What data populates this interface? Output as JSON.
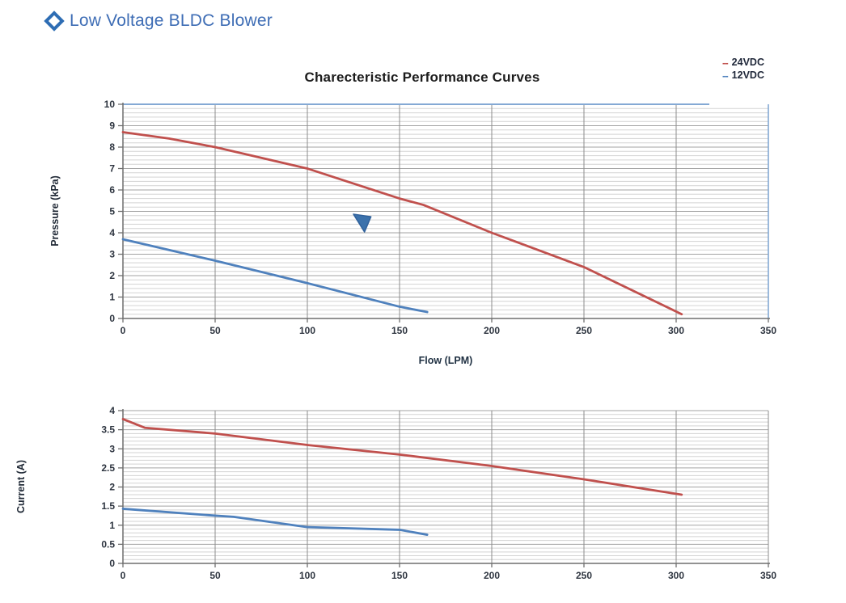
{
  "header": {
    "title": "Low Voltage BLDC Blower",
    "icon": "diamond",
    "accent_color": "#3E6DB5"
  },
  "legend": {
    "position": "top-right",
    "items": [
      {
        "marker": "--",
        "label": "24VDC",
        "color": "#C0504D"
      },
      {
        "marker": "--",
        "label": "12VDC",
        "color": "#4F81BD"
      }
    ]
  },
  "colors": {
    "series_red": "#C0504D",
    "series_blue": "#4F81BD",
    "grid_minor": "#D3D3D3",
    "grid_major": "#A3A3A3",
    "grid_vertical": "#8C8C8C",
    "axis": "#6F6F6F",
    "tick_text": "#2E3540",
    "frame_blue": "#84A9D4",
    "annotation_fill": "#3C72AC",
    "annotation_stroke": "#30619B"
  },
  "chart_data": [
    {
      "type": "line",
      "title": "Charecteristic Performance Curves",
      "xlabel": "Flow (LPM)",
      "ylabel": "Pressure (kPa)",
      "xlim": [
        0,
        350
      ],
      "ylim": [
        0,
        10
      ],
      "xticks": [
        0,
        50,
        100,
        150,
        200,
        250,
        300,
        350
      ],
      "yticks": [
        0,
        1,
        2,
        3,
        4,
        5,
        6,
        7,
        8,
        9,
        10
      ],
      "y_minor_step": 0.2,
      "grid": true,
      "legend_position": "top-right",
      "series": [
        {
          "name": "24VDC",
          "color": "#C0504D",
          "points": [
            [
              0,
              8.7
            ],
            [
              25,
              8.4
            ],
            [
              50,
              8.0
            ],
            [
              75,
              7.5
            ],
            [
              100,
              7.0
            ],
            [
              125,
              6.3
            ],
            [
              150,
              5.6
            ],
            [
              163,
              5.3
            ],
            [
              200,
              4.0
            ],
            [
              250,
              2.4
            ],
            [
              303,
              0.2
            ]
          ]
        },
        {
          "name": "12VDC",
          "color": "#4F81BD",
          "points": [
            [
              0,
              3.7
            ],
            [
              25,
              3.2
            ],
            [
              50,
              2.7
            ],
            [
              100,
              1.65
            ],
            [
              150,
              0.55
            ],
            [
              165,
              0.3
            ]
          ]
        }
      ],
      "annotation_triangle": [
        [
          125,
          4.87
        ],
        [
          134.5,
          4.75
        ],
        [
          131,
          4.04
        ]
      ],
      "frame": {
        "top_line_to_x": 318,
        "right_line": true
      }
    },
    {
      "type": "line",
      "title": "",
      "xlabel": "",
      "ylabel": "Current (A)",
      "xlim": [
        0,
        350
      ],
      "ylim": [
        0,
        4
      ],
      "xticks": [
        0,
        50,
        100,
        150,
        200,
        250,
        300,
        350
      ],
      "yticks": [
        0,
        0.5,
        1,
        1.5,
        2,
        2.5,
        3,
        3.5,
        4
      ],
      "y_minor_step": 0.1,
      "grid": true,
      "series": [
        {
          "name": "24VDC",
          "color": "#C0504D",
          "points": [
            [
              0,
              3.78
            ],
            [
              12,
              3.55
            ],
            [
              50,
              3.4
            ],
            [
              100,
              3.1
            ],
            [
              150,
              2.85
            ],
            [
              200,
              2.55
            ],
            [
              250,
              2.2
            ],
            [
              303,
              1.8
            ]
          ]
        },
        {
          "name": "12VDC",
          "color": "#4F81BD",
          "points": [
            [
              0,
              1.43
            ],
            [
              50,
              1.25
            ],
            [
              60,
              1.22
            ],
            [
              100,
              0.95
            ],
            [
              150,
              0.88
            ],
            [
              165,
              0.75
            ]
          ]
        }
      ]
    }
  ]
}
